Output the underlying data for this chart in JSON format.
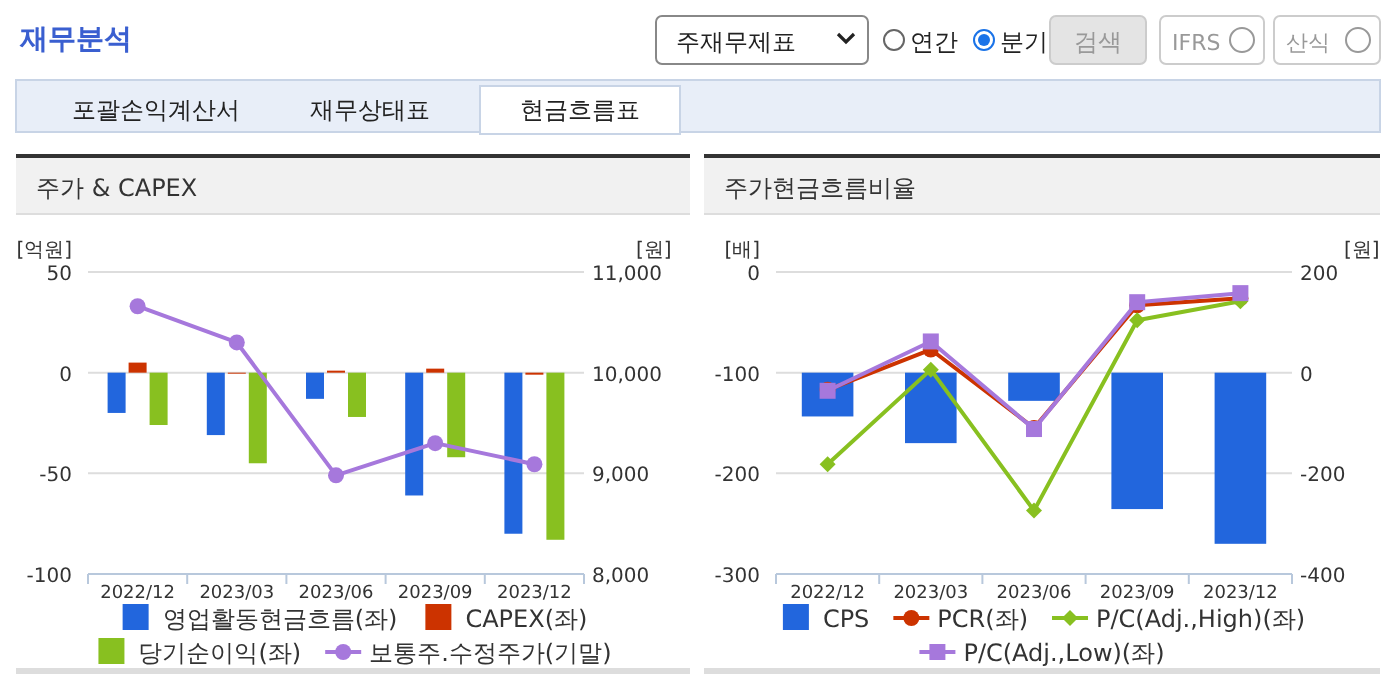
{
  "chart_data": [
    {
      "type": "other",
      "title": "재무분석",
      "annotations": [
        "주재무제표",
        "연간",
        "분기",
        "검색",
        "IFRS",
        "산식",
        "포괄손익계산서",
        "재무상태표",
        "현금흐름표"
      ]
    },
    {
      "type": "bar",
      "title": "주가 & CAPEX",
      "ylabel": "[억원]",
      "y2label": "[원]",
      "categories": [
        "2022/12",
        "2023/03",
        "2023/06",
        "2023/09",
        "2023/12"
      ],
      "ylim": [
        -100,
        50
      ],
      "yticks": [
        -100,
        -50,
        0,
        50
      ],
      "y2lim": [
        8000,
        11000
      ],
      "y2ticks": [
        {
          "value": 8000,
          "label": "8,000"
        },
        {
          "value": 9000,
          "label": "9,000"
        },
        {
          "value": 10000,
          "label": "10,000"
        },
        {
          "value": 11000,
          "label": "11,000"
        }
      ],
      "grid": "y",
      "legend": "bottom",
      "series": [
        {
          "name": "영업활동현금흐름(좌)",
          "color": "#2266dd",
          "values": [
            -20,
            -31,
            -13,
            -61,
            -80
          ]
        },
        {
          "name": "CAPEX(좌)",
          "color": "#cc3300",
          "values": [
            5,
            0,
            1,
            2,
            -1
          ]
        },
        {
          "name": "당기순이익(좌)",
          "color": "#88c020",
          "values": [
            -26,
            -45,
            -22,
            -42,
            -83
          ]
        },
        {
          "name": "보통주.수정주가(기말)",
          "type": "line",
          "axis": "y2",
          "marker": "circle",
          "color": "#a678dc",
          "values": [
            10660,
            10300,
            8980,
            9300,
            9090
          ]
        }
      ]
    },
    {
      "type": "bar",
      "title": "주가현금흐름비율",
      "ylabel": "[배]",
      "y2label": "[원]",
      "categories": [
        "2022/12",
        "2023/03",
        "2023/06",
        "2023/09",
        "2023/12"
      ],
      "ylim": [
        -300,
        0
      ],
      "yticks": [
        -300,
        -200,
        -100,
        0
      ],
      "y2lim": [
        -400,
        200
      ],
      "y2ticks": [
        -400,
        -200,
        0,
        200
      ],
      "grid": "y",
      "legend": "bottom",
      "series": [
        {
          "name": "CPS",
          "axis": "y2",
          "color": "#2266dd",
          "values": [
            -87,
            -140,
            -56,
            -271,
            -340
          ]
        },
        {
          "name": "PCR(좌)",
          "type": "line",
          "marker": "circle",
          "color": "#cc3300",
          "values": [
            -117,
            -77,
            -155,
            -33,
            -26
          ]
        },
        {
          "name": "P/C(Adj.,High)(좌)",
          "type": "line",
          "marker": "diamond",
          "color": "#88c020",
          "values": [
            -191,
            -97,
            -237,
            -48,
            -29
          ]
        },
        {
          "name": "P/C(Adj.,Low)(좌)",
          "type": "line",
          "marker": "square",
          "color": "#a678dc",
          "values": [
            -118,
            -69,
            -156,
            -30,
            -21
          ]
        }
      ]
    }
  ]
}
